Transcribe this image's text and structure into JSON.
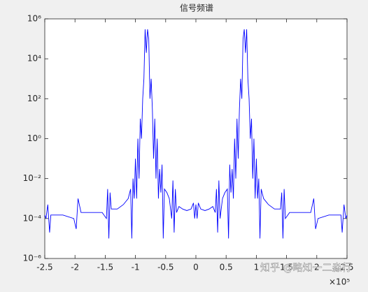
{
  "chart_data": {
    "type": "line",
    "title": "信号频谱",
    "x_multiplier": "×10⁵",
    "watermark": "知乎 @略知一二淼行",
    "x": [
      -2.5,
      -2.48,
      -2.45,
      -2.42,
      -2.4,
      -2.2,
      -2.02,
      -1.98,
      -1.95,
      -1.9,
      -1.7,
      -1.55,
      -1.48,
      -1.46,
      -1.44,
      -1.42,
      -1.4,
      -1.3,
      -1.2,
      -1.12,
      -1.08,
      -1.06,
      -1.04,
      -1.02,
      -1.0,
      -0.98,
      -0.96,
      -0.94,
      -0.92,
      -0.9,
      -0.88,
      -0.86,
      -0.84,
      -0.82,
      -0.8,
      -0.78,
      -0.76,
      -0.74,
      -0.72,
      -0.7,
      -0.68,
      -0.66,
      -0.64,
      -0.62,
      -0.6,
      -0.58,
      -0.56,
      -0.54,
      -0.52,
      -0.48,
      -0.44,
      -0.4,
      -0.38,
      -0.36,
      -0.34,
      -0.32,
      -0.28,
      -0.22,
      -0.15,
      -0.08,
      -0.04,
      -0.02,
      0,
      0.02,
      0.04,
      0.08,
      0.15,
      0.22,
      0.28,
      0.32,
      0.34,
      0.36,
      0.38,
      0.4,
      0.44,
      0.48,
      0.52,
      0.54,
      0.56,
      0.58,
      0.6,
      0.62,
      0.64,
      0.66,
      0.68,
      0.7,
      0.72,
      0.74,
      0.76,
      0.78,
      0.8,
      0.82,
      0.84,
      0.86,
      0.88,
      0.9,
      0.92,
      0.94,
      0.96,
      0.98,
      1.0,
      1.02,
      1.04,
      1.06,
      1.08,
      1.12,
      1.2,
      1.3,
      1.4,
      1.42,
      1.44,
      1.46,
      1.48,
      1.55,
      1.7,
      1.9,
      1.95,
      1.98,
      2.02,
      2.2,
      2.4,
      2.42,
      2.45,
      2.48,
      2.5
    ],
    "values": [
      0.00015,
      0.0001,
      0.0005,
      2e-05,
      0.00015,
      0.00015,
      0.0001,
      3e-05,
      0.001,
      0.0002,
      0.0002,
      0.0002,
      0.0001,
      0.003,
      1e-05,
      0.002,
      0.0003,
      0.0003,
      0.0005,
      0.001,
      0.003,
      1e-05,
      0.01,
      0.001,
      0.1,
      0.001,
      1,
      0.01,
      10,
      1,
      100,
      1000,
      300000,
      20000,
      300000,
      100000,
      100,
      1000,
      30,
      0.1,
      10,
      0.01,
      1,
      0.001,
      0.03,
      0.002,
      0.05,
      1e-05,
      0.003,
      0.002,
      0.001,
      0.0001,
      0.008,
      2e-05,
      0.003,
      0.0002,
      0.0004,
      0.0003,
      0.00025,
      0.0003,
      0.0006,
      0.0001,
      0.0005,
      0.0001,
      0.0006,
      0.0003,
      0.00025,
      0.0003,
      0.0004,
      0.0002,
      0.003,
      2e-05,
      0.008,
      0.0001,
      0.001,
      0.002,
      0.003,
      1e-05,
      0.05,
      0.002,
      0.03,
      0.001,
      1,
      0.01,
      10,
      0.1,
      30,
      1000,
      100,
      100000,
      300000,
      20000,
      300000,
      1000,
      100,
      1,
      10,
      0.01,
      1,
      0.001,
      0.1,
      0.001,
      0.01,
      1e-05,
      0.003,
      0.001,
      0.0005,
      0.0003,
      0.0003,
      0.002,
      1e-05,
      0.003,
      0.0001,
      0.0002,
      0.0002,
      0.0002,
      0.001,
      3e-05,
      0.0001,
      0.00015,
      0.00015,
      2e-05,
      0.0005,
      0.0001,
      0.00015
    ],
    "color": "#0000ff",
    "xlim": [
      -2.5,
      2.5
    ],
    "xticks": [
      -2.5,
      -2,
      -1.5,
      -1,
      -0.5,
      0,
      0.5,
      1,
      1.5,
      2,
      2.5
    ],
    "ylim": [
      1e-06,
      1000000.0
    ],
    "log_y": true,
    "yticks": [
      {
        "value": 1e-06,
        "label": "10⁻⁶"
      },
      {
        "value": 0.0001,
        "label": "10⁻⁴"
      },
      {
        "value": 0.01,
        "label": "10⁻²"
      },
      {
        "value": 1,
        "label": "10⁰"
      },
      {
        "value": 100,
        "label": "10²"
      },
      {
        "value": 10000,
        "label": "10⁴"
      },
      {
        "value": 1000000,
        "label": "10⁶"
      }
    ],
    "grid": false
  }
}
